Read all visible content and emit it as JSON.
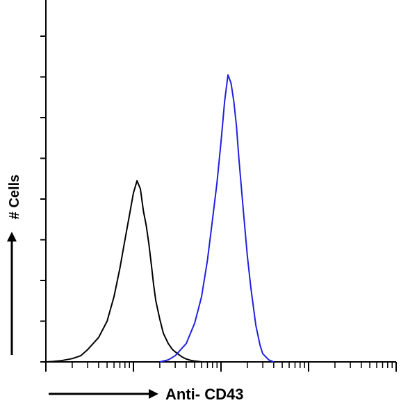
{
  "chart_data": {
    "type": "line",
    "title": "",
    "xlabel": "Anti- CD43",
    "ylabel": "# Cells",
    "x_scale": "log",
    "xlim": [
      1,
      10000
    ],
    "ylim": [
      0,
      8
    ],
    "grid": false,
    "legend": "none",
    "series": [
      {
        "color": "#000000",
        "x": [
          1.0,
          1.2,
          1.5,
          2.0,
          2.5,
          3.0,
          4.0,
          5.0,
          6.0,
          7.0,
          8.0,
          9.0,
          10.0,
          11.0,
          12.0,
          13.0,
          14.0,
          15.0,
          16.0,
          17.0,
          18.0,
          20.0,
          22.0,
          25.0,
          28.0,
          32.0,
          36.0,
          40.0,
          45.0,
          50.0,
          55.0,
          60.0,
          70.0,
          80.0,
          90.0,
          100.0,
          120.0
        ],
        "y": [
          0.0,
          0.01,
          0.03,
          0.08,
          0.15,
          0.3,
          0.6,
          1.0,
          1.6,
          2.3,
          3.0,
          3.6,
          4.15,
          4.45,
          4.25,
          3.7,
          3.35,
          2.9,
          2.4,
          1.9,
          1.5,
          1.05,
          0.7,
          0.45,
          0.3,
          0.2,
          0.12,
          0.07,
          0.04,
          0.02,
          0.01,
          0.0,
          0.0,
          0.0,
          0.0,
          0.0,
          0.0
        ]
      },
      {
        "color": "#2020e0",
        "x": [
          20.0,
          25.0,
          30.0,
          40.0,
          50.0,
          60.0,
          70.0,
          80.0,
          90.0,
          100.0,
          110.0,
          120.0,
          130.0,
          140.0,
          150.0,
          160.0,
          180.0,
          200.0,
          220.0,
          250.0,
          280.0,
          300.0,
          350.0,
          400.0
        ],
        "y": [
          0.0,
          0.05,
          0.15,
          0.45,
          0.95,
          1.6,
          2.5,
          3.5,
          4.4,
          5.4,
          6.4,
          7.05,
          6.85,
          6.4,
          5.8,
          5.0,
          3.7,
          2.6,
          1.8,
          0.9,
          0.4,
          0.2,
          0.05,
          0.0
        ]
      }
    ]
  }
}
